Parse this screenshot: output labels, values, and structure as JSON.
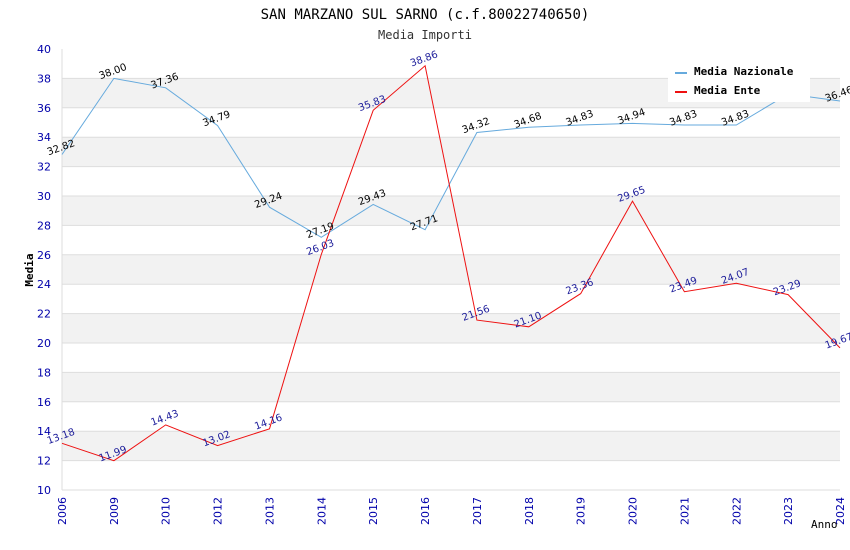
{
  "chart_data": {
    "type": "line",
    "title": "SAN MARZANO SUL SARNO (c.f.80022740650)",
    "subtitle": "Media Importi",
    "xlabel": "Anno",
    "ylabel": "Media",
    "ylim": [
      10,
      40
    ],
    "yticks": [
      "10",
      "12",
      "14",
      "16",
      "18",
      "20",
      "22",
      "24",
      "26",
      "28",
      "30",
      "32",
      "34",
      "36",
      "38",
      "40"
    ],
    "categories": [
      "2006",
      "2009",
      "2010",
      "2012",
      "2013",
      "2014",
      "2015",
      "2016",
      "2017",
      "2018",
      "2019",
      "2020",
      "2021",
      "2022",
      "2023",
      "2024"
    ],
    "grid": "horizontal bands",
    "legend_position": "top-right",
    "series": [
      {
        "name": "Media Nazionale",
        "color": "#66aadd",
        "values": [
          32.82,
          38.0,
          37.36,
          34.79,
          29.24,
          27.19,
          29.43,
          27.71,
          34.32,
          34.68,
          34.83,
          34.94,
          34.83,
          34.83,
          36.94,
          36.46
        ],
        "labels": [
          "32.82",
          "38.00",
          "37.36",
          "34.79",
          "29.24",
          "27.19",
          "29.43",
          "27.71",
          "34.32",
          "34.68",
          "34.83",
          "34.94",
          "34.83",
          "34.83",
          "",
          "36.46"
        ]
      },
      {
        "name": "Media Ente",
        "color": "#ee1111",
        "values": [
          13.18,
          11.99,
          14.43,
          13.02,
          14.16,
          26.03,
          35.83,
          38.86,
          21.56,
          21.1,
          23.36,
          29.65,
          23.49,
          24.07,
          23.29,
          19.67
        ],
        "labels": [
          "13.18",
          "11.99",
          "14.43",
          "13.02",
          "14.16",
          "26.03",
          "35.83",
          "38.86",
          "21.56",
          "21.10",
          "23.36",
          "29.65",
          "23.49",
          "24.07",
          "23.29",
          "19.67"
        ]
      }
    ]
  }
}
